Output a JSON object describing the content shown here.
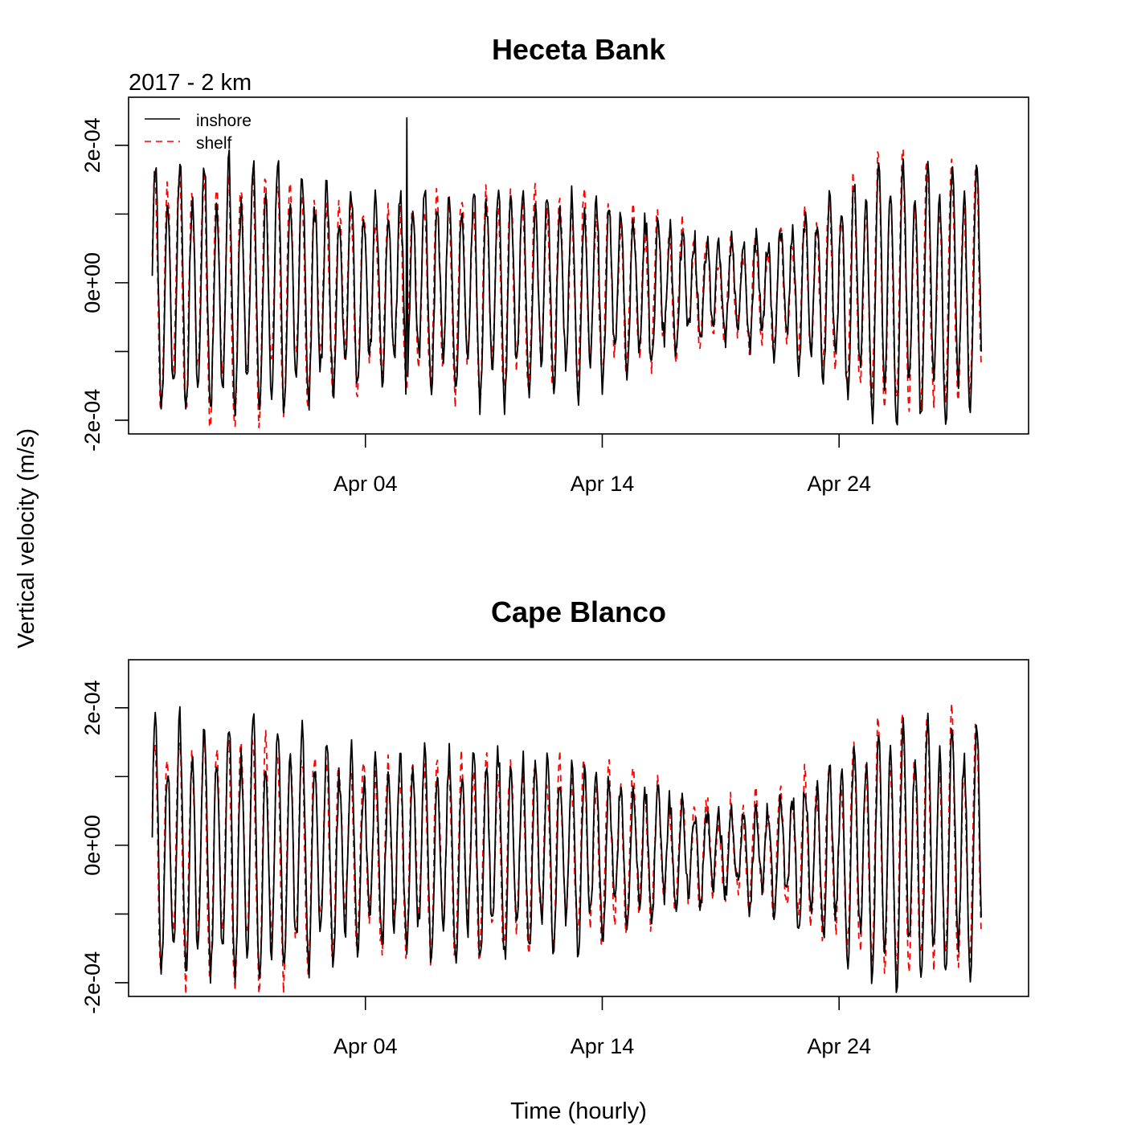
{
  "figure": {
    "ylabel": "Vertical velocity (m/s)",
    "xlabel": "Time (hourly)",
    "subtitle": "2017 - 2 km"
  },
  "chart_data": [
    {
      "type": "line",
      "title": "Heceta Bank",
      "xlabel": "Time (hourly)",
      "ylabel": "Vertical velocity (m/s)",
      "x_start": "2017-03-26",
      "x_end": "2017-04-30",
      "xlim": [
        "2017-03-25",
        "2017-05-02"
      ],
      "ylim": [
        -0.00022,
        0.00027
      ],
      "y_ticks": [
        -0.0002,
        -0.0001,
        0.0,
        0.0001,
        0.0002
      ],
      "y_tick_labels": [
        "-2e-04",
        "",
        "0e+00",
        "",
        "2e-04"
      ],
      "x_ticks": [
        "2017-04-04",
        "2017-04-14",
        "2017-04-24"
      ],
      "x_tick_labels": [
        "Apr 04",
        "Apr 14",
        "Apr 24"
      ],
      "grid": false,
      "legend": "top-left",
      "tidal_period_hours": 12.42,
      "amplitude_envelope": [
        {
          "x": "2017-03-26",
          "inshore": 0.000155,
          "shelf": 0.000155
        },
        {
          "x": "2017-03-31",
          "inshore": 0.00016,
          "shelf": 0.000155
        },
        {
          "x": "2017-04-04",
          "inshore": 0.000115,
          "shelf": 0.00011
        },
        {
          "x": "2017-04-09",
          "inshore": 0.00014,
          "shelf": 0.000135
        },
        {
          "x": "2017-04-14",
          "inshore": 0.00012,
          "shelf": 0.000115
        },
        {
          "x": "2017-04-19",
          "inshore": 6e-05,
          "shelf": 6e-05
        },
        {
          "x": "2017-04-22",
          "inshore": 8.5e-05,
          "shelf": 8e-05
        },
        {
          "x": "2017-04-26",
          "inshore": 0.00017,
          "shelf": 0.000165
        },
        {
          "x": "2017-04-30",
          "inshore": 0.000155,
          "shelf": 0.00015
        }
      ],
      "mean_offset": -1e-05,
      "series": [
        {
          "name": "inshore",
          "color": "#000000",
          "dash": "solid"
        },
        {
          "name": "shelf",
          "color": "#ff0000",
          "dash": "dashed"
        }
      ],
      "annotations": [
        {
          "series": "inshore",
          "x": "2017-04-05T18:00",
          "y": 0.00024
        }
      ]
    },
    {
      "type": "line",
      "title": "Cape Blanco",
      "xlabel": "Time (hourly)",
      "ylabel": "Vertical velocity (m/s)",
      "x_start": "2017-03-26",
      "x_end": "2017-04-30",
      "xlim": [
        "2017-03-25",
        "2017-05-02"
      ],
      "ylim": [
        -0.00022,
        0.00027
      ],
      "y_ticks": [
        -0.0002,
        -0.0001,
        0.0,
        0.0001,
        0.0002
      ],
      "y_tick_labels": [
        "-2e-04",
        "",
        "0e+00",
        "",
        "2e-04"
      ],
      "x_ticks": [
        "2017-04-04",
        "2017-04-14",
        "2017-04-24"
      ],
      "x_tick_labels": [
        "Apr 04",
        "Apr 14",
        "Apr 24"
      ],
      "grid": false,
      "tidal_period_hours": 12.42,
      "amplitude_envelope": [
        {
          "x": "2017-03-26",
          "inshore": 0.00016,
          "shelf": 0.000155
        },
        {
          "x": "2017-03-31",
          "inshore": 0.000165,
          "shelf": 0.00016
        },
        {
          "x": "2017-04-04",
          "inshore": 0.00012,
          "shelf": 0.000115
        },
        {
          "x": "2017-04-09",
          "inshore": 0.000135,
          "shelf": 0.00013
        },
        {
          "x": "2017-04-14",
          "inshore": 0.00011,
          "shelf": 0.00011
        },
        {
          "x": "2017-04-19",
          "inshore": 5e-05,
          "shelf": 5.5e-05
        },
        {
          "x": "2017-04-22",
          "inshore": 8e-05,
          "shelf": 8e-05
        },
        {
          "x": "2017-04-26",
          "inshore": 0.000165,
          "shelf": 0.000165
        },
        {
          "x": "2017-04-30",
          "inshore": 0.00016,
          "shelf": 0.00016
        }
      ],
      "mean_offset": -1e-05,
      "series": [
        {
          "name": "inshore",
          "color": "#000000",
          "dash": "solid"
        },
        {
          "name": "shelf",
          "color": "#ff0000",
          "dash": "dashed"
        }
      ]
    }
  ]
}
